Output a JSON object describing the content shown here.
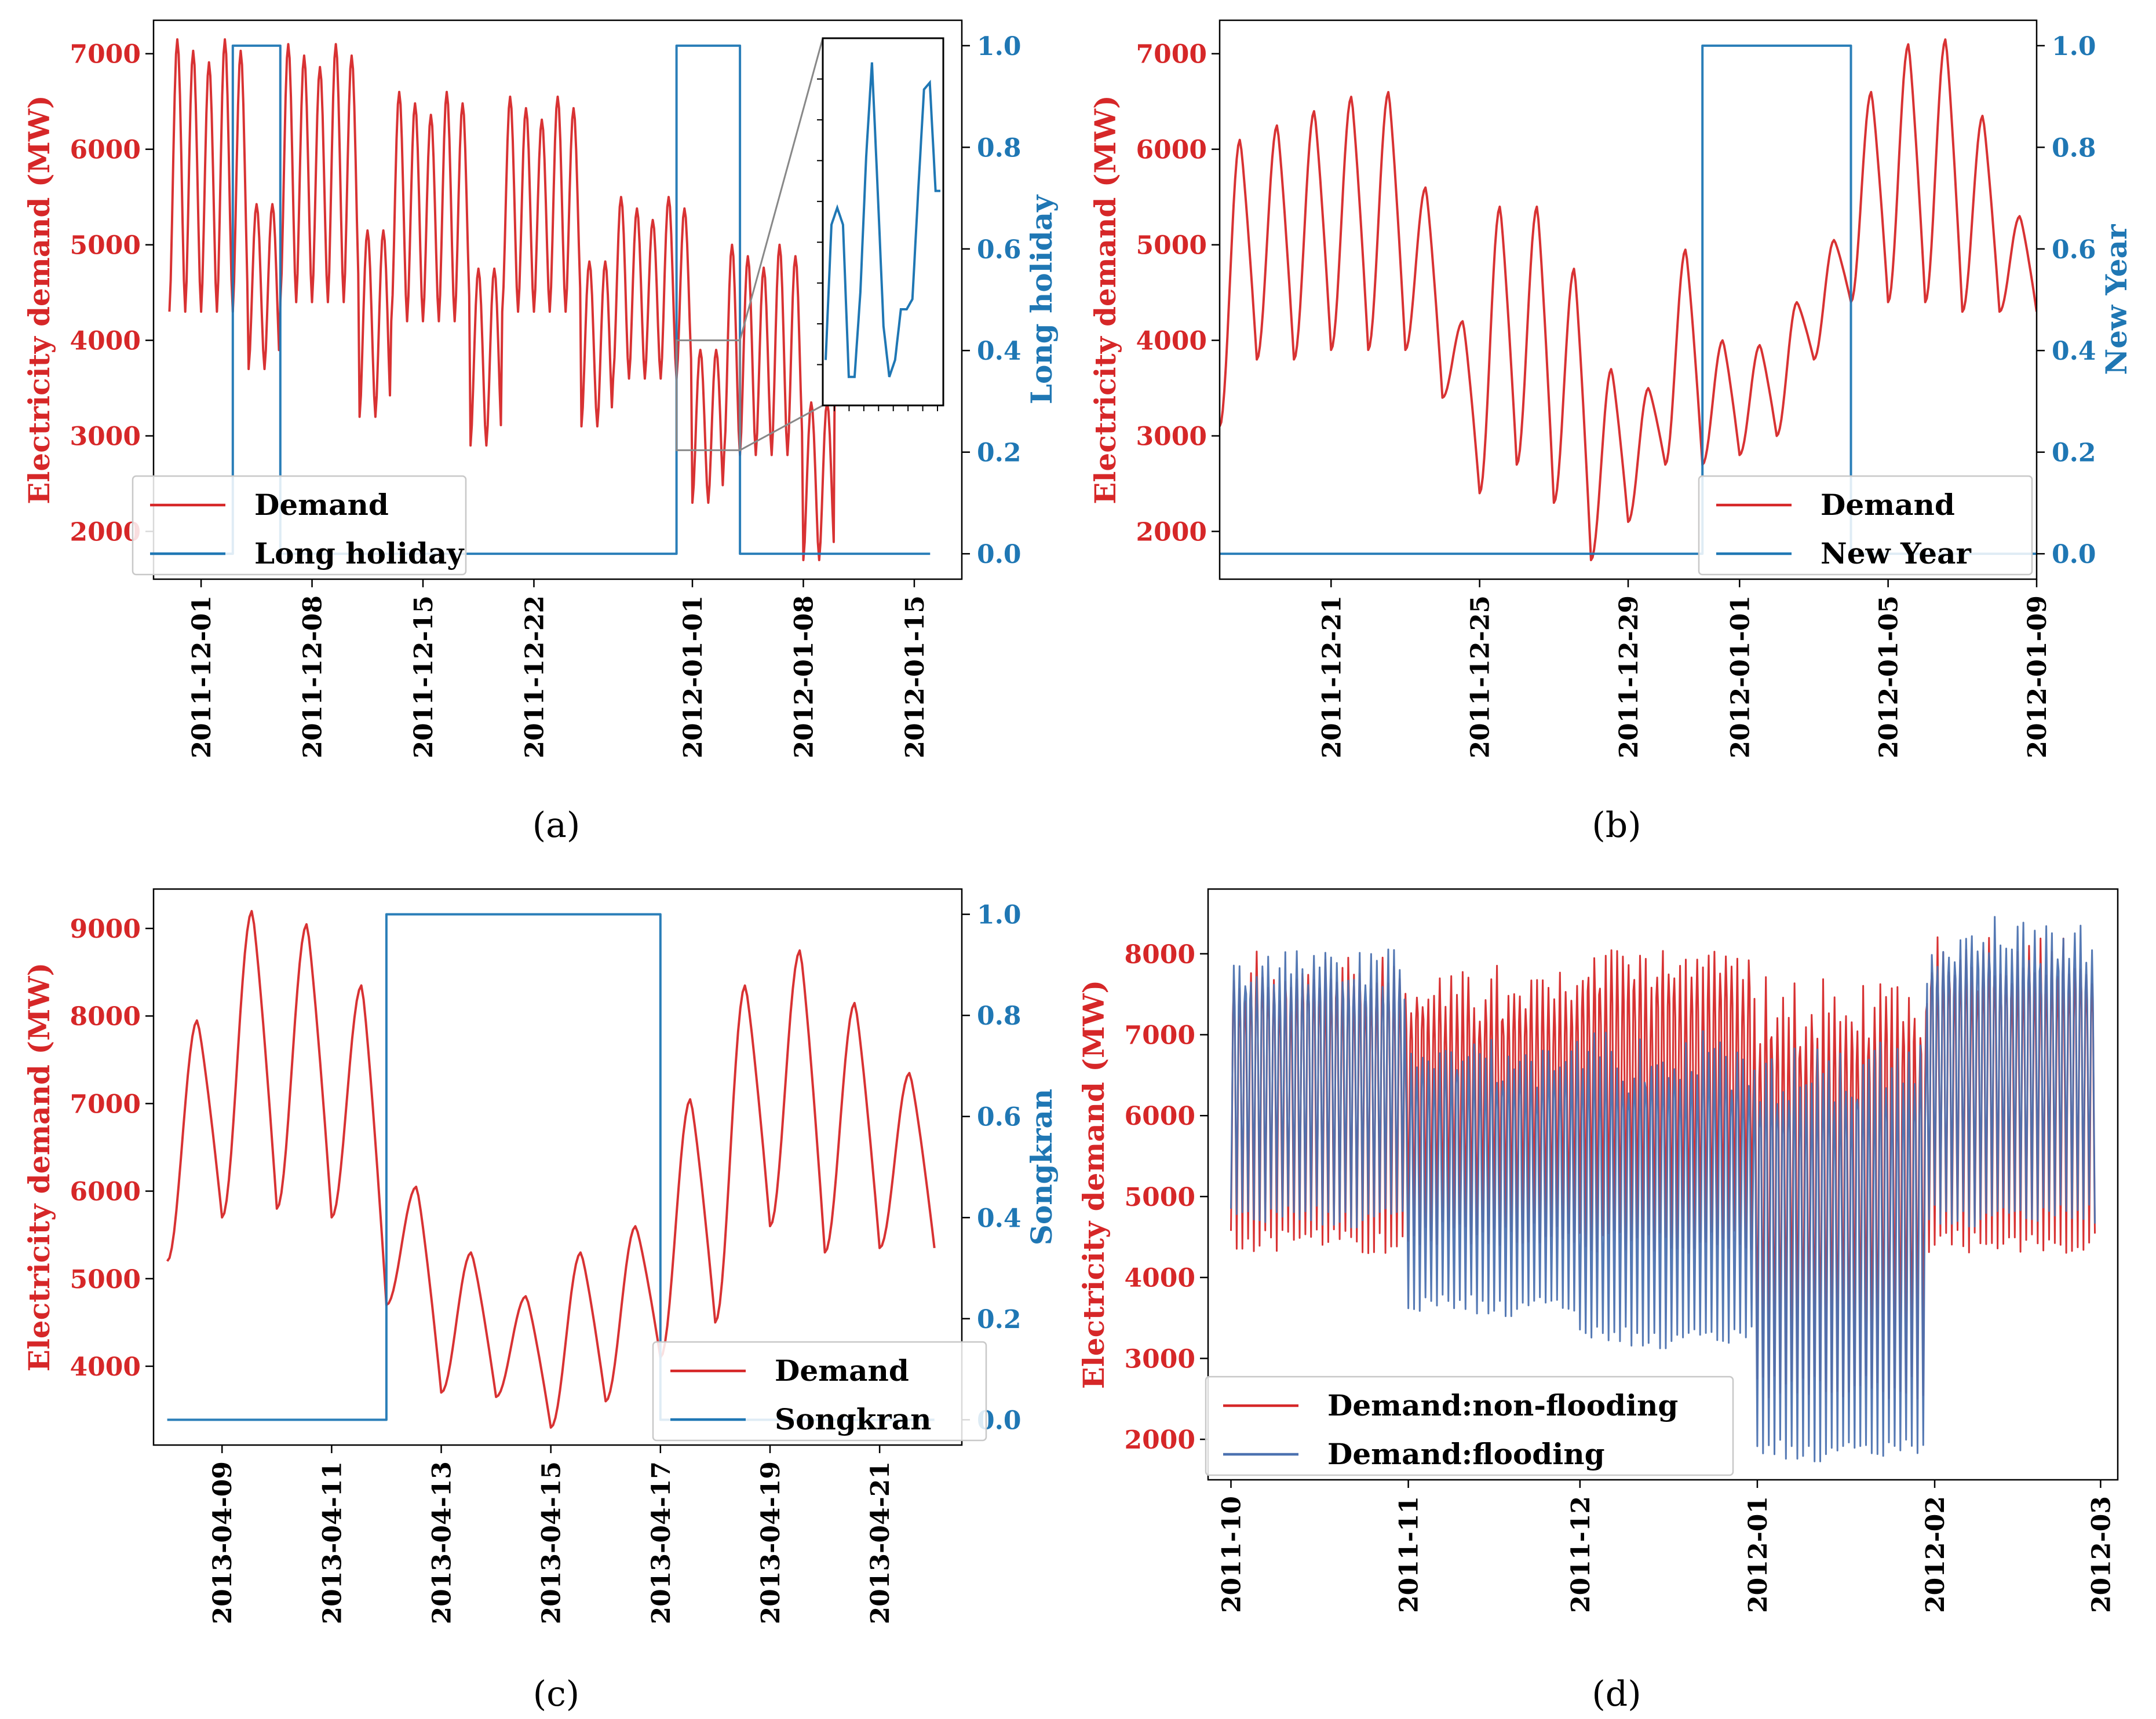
{
  "colors": {
    "demand": "#d62728",
    "indicator": "#1f77b4",
    "flooding": "#4c72b0"
  },
  "chart_data": [
    {
      "id": "a",
      "caption": "(a)",
      "type": "line",
      "ylabel": "Electricity demand (MW)",
      "y2label": "Long holiday",
      "x_ticks": [
        "2011-12-01",
        "2011-12-08",
        "2011-12-15",
        "2011-12-22",
        "2012-01-01",
        "2012-01-08",
        "2012-01-15"
      ],
      "x_range": [
        "2011-11-28",
        "2012-01-18"
      ],
      "ylim": [
        1500,
        7350
      ],
      "y_ticks": [
        2000,
        3000,
        4000,
        5000,
        6000,
        7000
      ],
      "y2lim": [
        -0.05,
        1.05
      ],
      "y2_ticks": [
        "0.0",
        "0.2",
        "0.4",
        "0.6",
        "0.8",
        "1.0"
      ],
      "legend": {
        "position": "lower-left",
        "entries": [
          "Demand",
          "Long holiday"
        ]
      },
      "series": [
        {
          "name": "Demand",
          "axis": "left",
          "x_start": "2011-11-29",
          "x_end": "2012-01-16",
          "weekly_peaks": [
            7150,
            7100,
            6600,
            6550,
            5500,
            5000,
            7150,
            7100
          ],
          "weekday_troughs": [
            4300,
            4400,
            4200,
            4300,
            3600,
            2800,
            4200,
            4300
          ],
          "weekend_lows": [
            3700,
            3200,
            2900,
            3100,
            2300,
            1700,
            3400,
            3500
          ]
        },
        {
          "name": "Long holiday",
          "axis": "right",
          "steps": [
            [
              "2011-11-28",
              0
            ],
            [
              "2011-12-03",
              1
            ],
            [
              "2011-12-06",
              0
            ],
            [
              "2011-12-31",
              1
            ],
            [
              "2012-01-04",
              0
            ],
            [
              "2012-01-16",
              0
            ]
          ]
        }
      ],
      "inset": {
        "source_window": [
          "2011-12-31",
          "2012-01-04"
        ],
        "position": "top-right"
      }
    },
    {
      "id": "b",
      "caption": "(b)",
      "type": "line",
      "ylabel": "Electricity demand (MW)",
      "y2label": "New Year",
      "x_ticks": [
        "2011-12-21",
        "2011-12-25",
        "2011-12-29",
        "2012-01-01",
        "2012-01-05",
        "2012-01-09"
      ],
      "x_range": [
        "2011-12-18",
        "2012-01-09"
      ],
      "ylim": [
        1500,
        7350
      ],
      "y_ticks": [
        2000,
        3000,
        4000,
        5000,
        6000,
        7000
      ],
      "y2lim": [
        -0.05,
        1.05
      ],
      "y2_ticks": [
        "0.0",
        "0.2",
        "0.4",
        "0.6",
        "0.8",
        "1.0"
      ],
      "legend": {
        "position": "lower-right",
        "entries": [
          "Demand",
          "New Year"
        ]
      },
      "series": [
        {
          "name": "Demand",
          "axis": "left",
          "x_start": "2011-12-18",
          "x_end": "2012-01-09",
          "daily_peaks": [
            6100,
            6250,
            6400,
            6550,
            6600,
            5600,
            4200,
            5400,
            5400,
            4750,
            3700,
            3500,
            4950,
            4000,
            3950,
            4400,
            5050,
            6600,
            7100,
            7150,
            6350,
            5300
          ],
          "daily_troughs": [
            3100,
            3800,
            3800,
            3900,
            3900,
            3900,
            3400,
            2400,
            2700,
            2300,
            1700,
            2100,
            2700,
            2700,
            2800,
            3000,
            3800,
            4400,
            4400,
            4400,
            4300,
            4300
          ]
        },
        {
          "name": "New Year",
          "axis": "right",
          "steps": [
            [
              "2011-12-18",
              0
            ],
            [
              "2011-12-31",
              1
            ],
            [
              "2012-01-04",
              0
            ],
            [
              "2012-01-09",
              0
            ]
          ]
        }
      ]
    },
    {
      "id": "c",
      "caption": "(c)",
      "type": "line",
      "ylabel": "Electricity demand (MW)",
      "y2label": "Songkran",
      "x_ticks": [
        "2013-04-09",
        "2013-04-11",
        "2013-04-13",
        "2013-04-15",
        "2013-04-17",
        "2013-04-19",
        "2013-04-21"
      ],
      "x_range": [
        "2013-04-07 18:00",
        "2013-04-22 12:00"
      ],
      "ylim": [
        3100,
        9450
      ],
      "y_ticks": [
        4000,
        5000,
        6000,
        7000,
        8000,
        9000
      ],
      "y2lim": [
        -0.05,
        1.05
      ],
      "y2_ticks": [
        "0.0",
        "0.2",
        "0.4",
        "0.6",
        "0.8",
        "1.0"
      ],
      "legend": {
        "position": "lower-right",
        "entries": [
          "Demand",
          "Songkran"
        ]
      },
      "series": [
        {
          "name": "Demand",
          "axis": "left",
          "x_start": "2013-04-08",
          "x_end": "2013-04-22",
          "daily_peaks": [
            7950,
            9200,
            9050,
            8350,
            6050,
            5300,
            4800,
            5300,
            5600,
            7050,
            8350,
            8750,
            8150,
            7350
          ],
          "daily_troughs": [
            5200,
            5700,
            5800,
            5700,
            4700,
            3700,
            3650,
            3300,
            3600,
            4100,
            4500,
            5600,
            5300,
            5350
          ]
        },
        {
          "name": "Songkran",
          "axis": "right",
          "steps": [
            [
              "2013-04-08",
              0
            ],
            [
              "2013-04-12",
              1
            ],
            [
              "2013-04-17",
              0
            ],
            [
              "2013-04-22",
              0
            ]
          ]
        }
      ]
    },
    {
      "id": "d",
      "caption": "(d)",
      "type": "line",
      "ylabel": "Electricity demand (MW)",
      "x_ticks": [
        "2011-10",
        "2011-11",
        "2011-12",
        "2012-01",
        "2012-02",
        "2012-03"
      ],
      "x_range": [
        "2011-09-27",
        "2012-03-04"
      ],
      "ylim": [
        1500,
        8800
      ],
      "y_ticks": [
        2000,
        3000,
        4000,
        5000,
        6000,
        7000,
        8000
      ],
      "legend": {
        "position": "lower-left",
        "entries": [
          "Demand:non-flooding",
          "Demand:flooding"
        ]
      },
      "series": [
        {
          "name": "Demand:non-flooding",
          "x_start": "2011-10-01",
          "x_end": "2012-02-29",
          "monthly_peaks": [
            8150,
            7900,
            8200,
            7900,
            8300
          ],
          "monthly_troughs": [
            4300,
            4400,
            4300,
            2500,
            4300
          ]
        },
        {
          "name": "Demand:flooding",
          "x_start": "2011-10-01",
          "x_end": "2012-02-29",
          "monthly_peaks": [
            8200,
            7050,
            7100,
            7100,
            8550
          ],
          "monthly_troughs": [
            4600,
            3500,
            3100,
            1700,
            4600
          ]
        }
      ]
    }
  ]
}
